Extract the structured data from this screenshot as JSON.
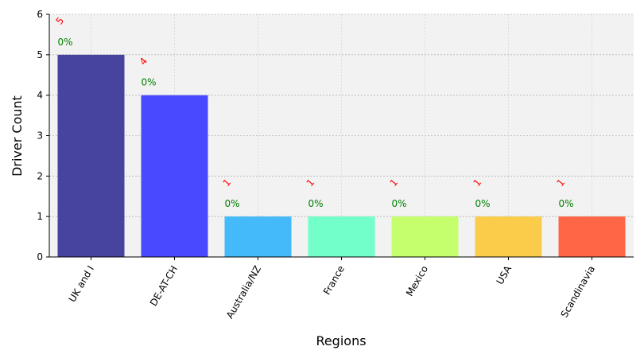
{
  "chart_data": {
    "type": "bar",
    "categories": [
      "UK and I",
      "DE-AT-CH",
      "Australia/NZ",
      "France",
      "Mexico",
      "USA",
      "Scandinavia"
    ],
    "values": [
      5,
      4,
      1,
      1,
      1,
      1,
      1
    ],
    "count_labels": [
      "5",
      "4",
      "1",
      "1",
      "1",
      "1",
      "1"
    ],
    "percent_labels": [
      "0%",
      "0%",
      "0%",
      "0%",
      "0%",
      "0%",
      "0%"
    ],
    "colors": [
      "#3d3a9b",
      "#3f3fff",
      "#3bb6fb",
      "#6cffc6",
      "#c2ff66",
      "#fbc940",
      "#ff5e3b"
    ],
    "xlabel": "Regions",
    "ylabel": "Driver Count",
    "ylim": [
      0,
      6
    ],
    "yticks": [
      "0",
      "1",
      "2",
      "3",
      "4",
      "5",
      "6"
    ],
    "grid": true,
    "background": "#f2f2f2",
    "count_label_color": "#ff0000",
    "percent_label_color": "#008000"
  }
}
